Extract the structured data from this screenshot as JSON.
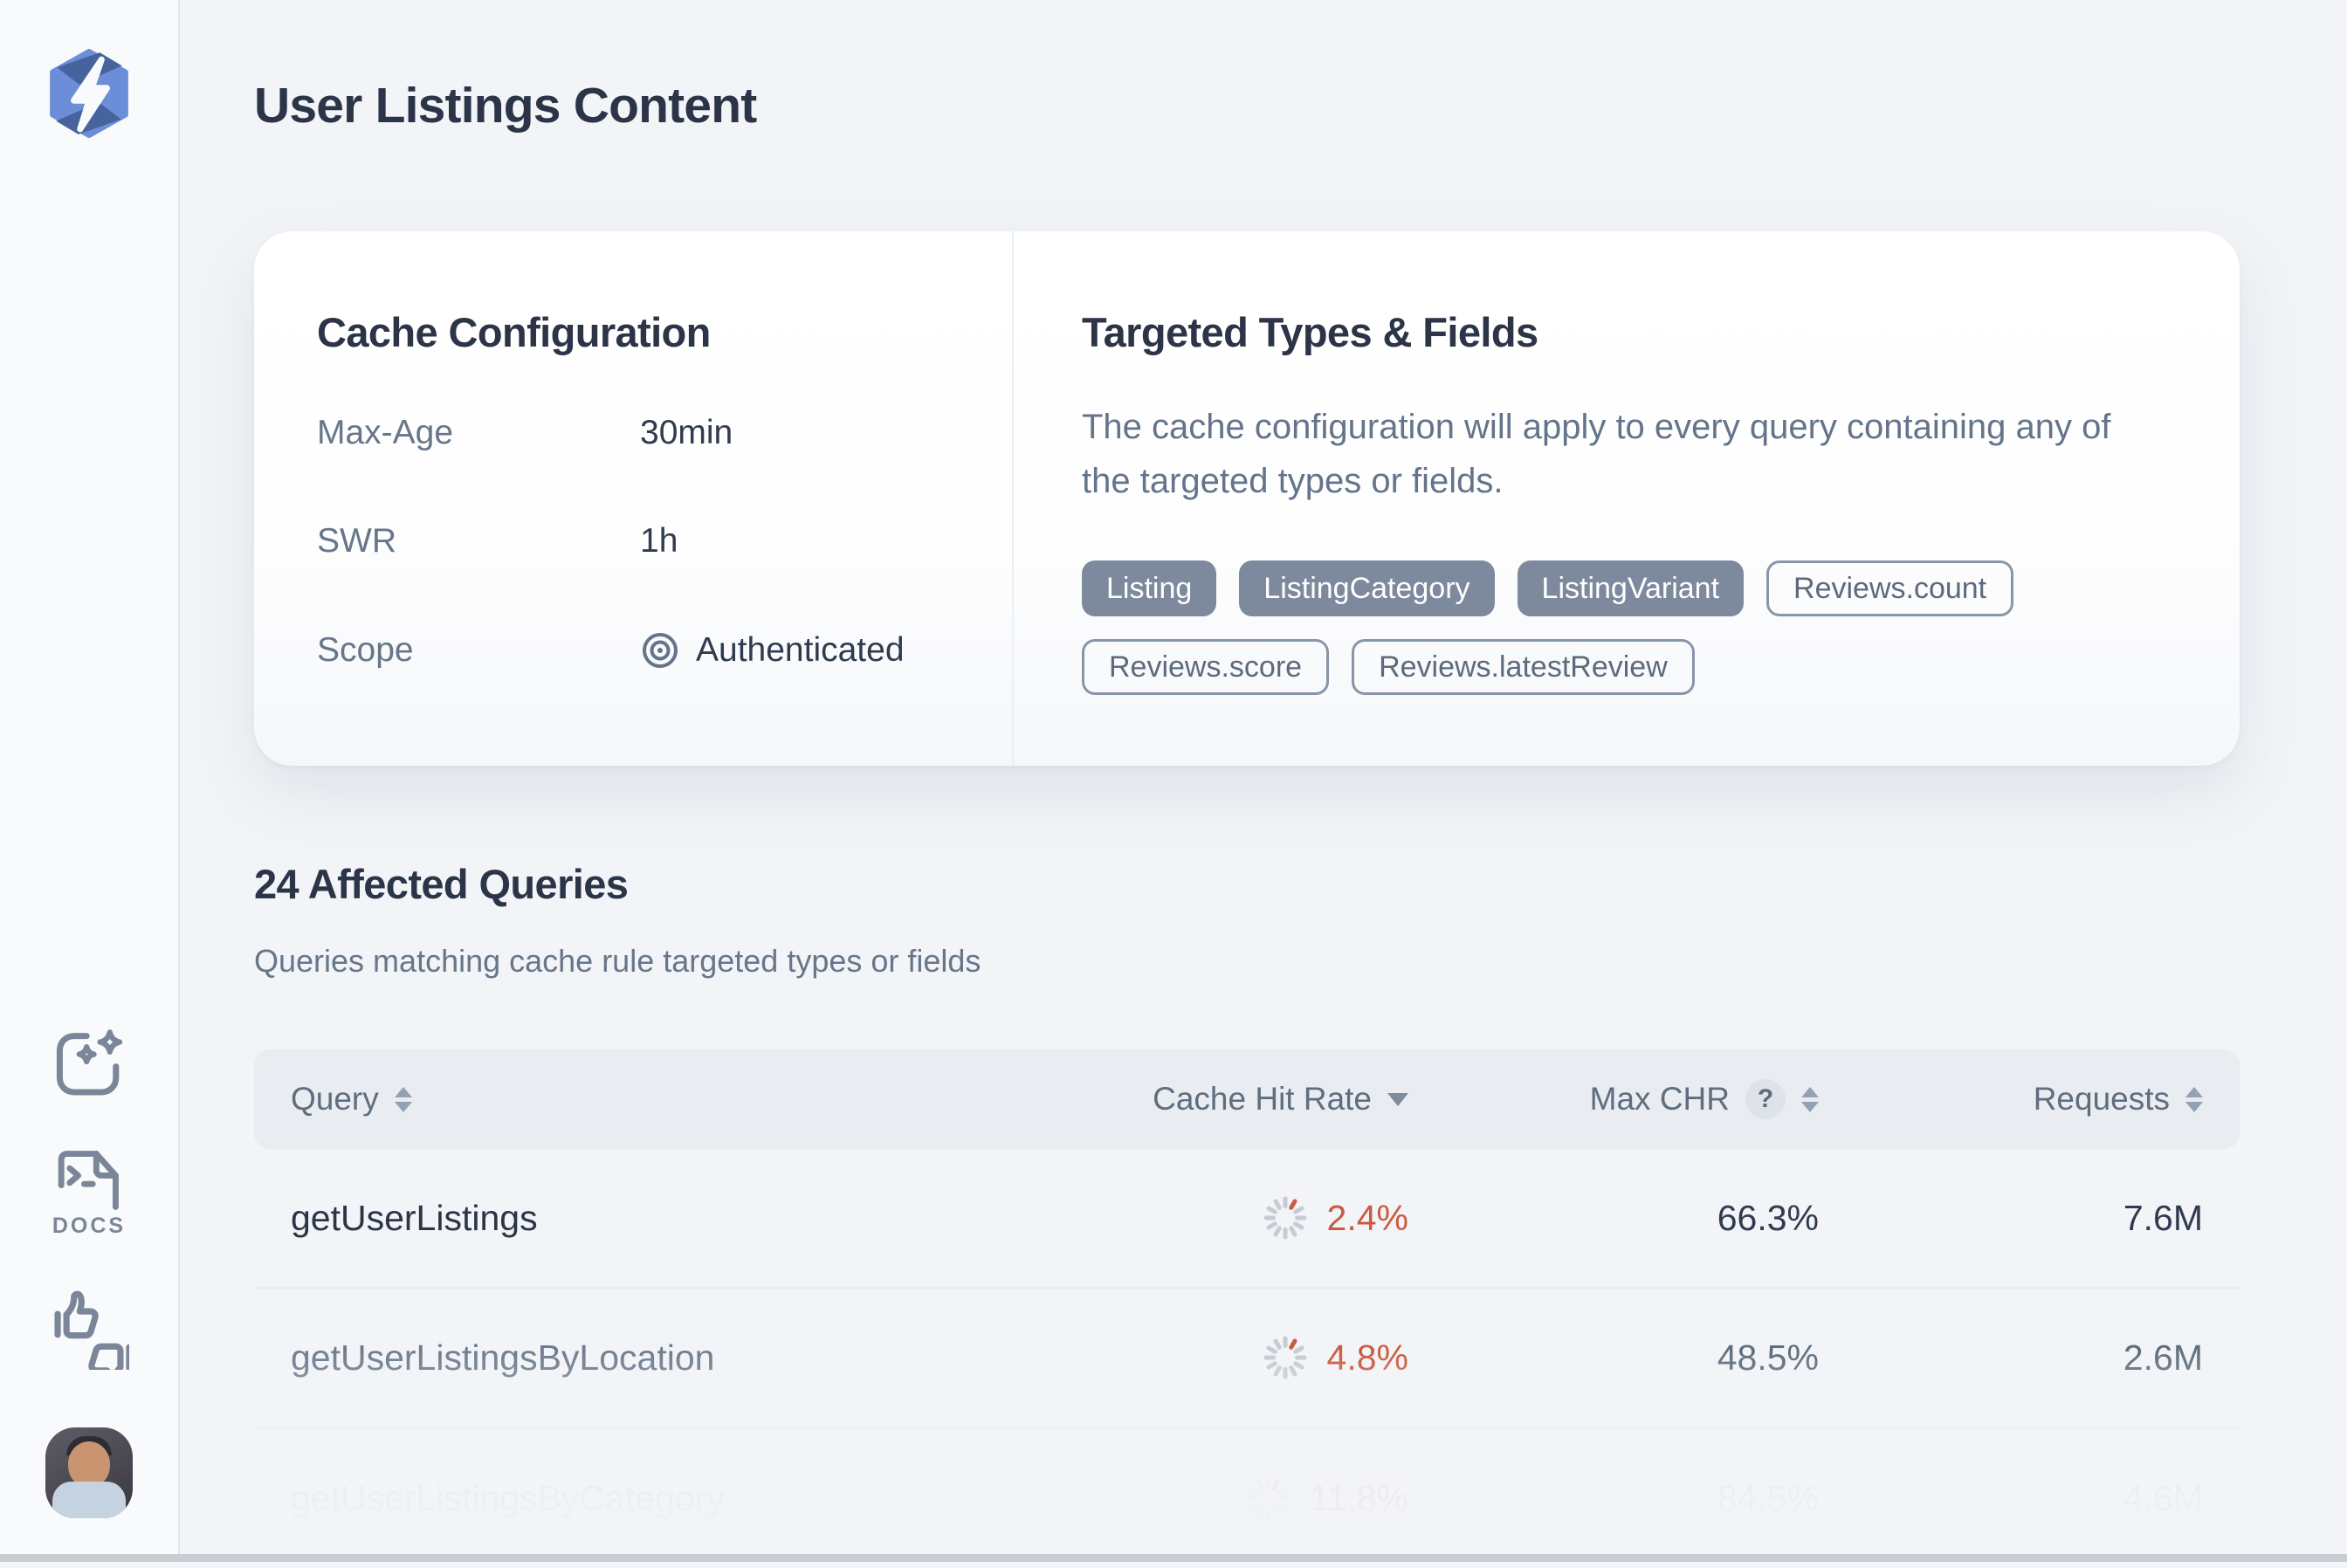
{
  "header": {
    "title": "User Listings Content"
  },
  "sidebar": {
    "docs_label": "DOCS"
  },
  "cache_config": {
    "title": "Cache Configuration",
    "rows": [
      {
        "label": "Max-Age",
        "value": "30min"
      },
      {
        "label": "SWR",
        "value": "1h"
      },
      {
        "label": "Scope",
        "value": "Authenticated"
      }
    ]
  },
  "targeted": {
    "title": "Targeted Types & Fields",
    "description": "The cache configuration will apply to every query containing any of the targeted types or fields.",
    "type_chips": [
      "Listing",
      "ListingCategory",
      "ListingVariant"
    ],
    "field_chips": [
      "Reviews.count",
      "Reviews.score",
      "Reviews.latestReview"
    ]
  },
  "queries_section": {
    "title": "24 Affected Queries",
    "subtitle": "Queries matching cache rule targeted types or fields",
    "table": {
      "columns": [
        {
          "label": "Query"
        },
        {
          "label": "Cache Hit Rate"
        },
        {
          "label": "Max CHR",
          "help": "?"
        },
        {
          "label": "Requests"
        }
      ],
      "rows": [
        {
          "query": "getUserListings",
          "cache_hit_rate": "2.4%",
          "max_chr": "66.3%",
          "requests": "7.6M"
        },
        {
          "query": "getUserListingsByLocation",
          "cache_hit_rate": "4.8%",
          "max_chr": "48.5%",
          "requests": "2.6M"
        },
        {
          "query": "getUserListingsByCategory",
          "cache_hit_rate": "11.8%",
          "max_chr": "84.5%",
          "requests": "4.6M"
        }
      ]
    }
  },
  "colors": {
    "accent_orange": "#CC5A40",
    "spinner_gray": "#C6CCD4",
    "chip_slate": "#7D8A9D",
    "text_dark": "#2B3547",
    "text_muted": "#68768A",
    "table_header_bg": "#E9EDF1"
  }
}
